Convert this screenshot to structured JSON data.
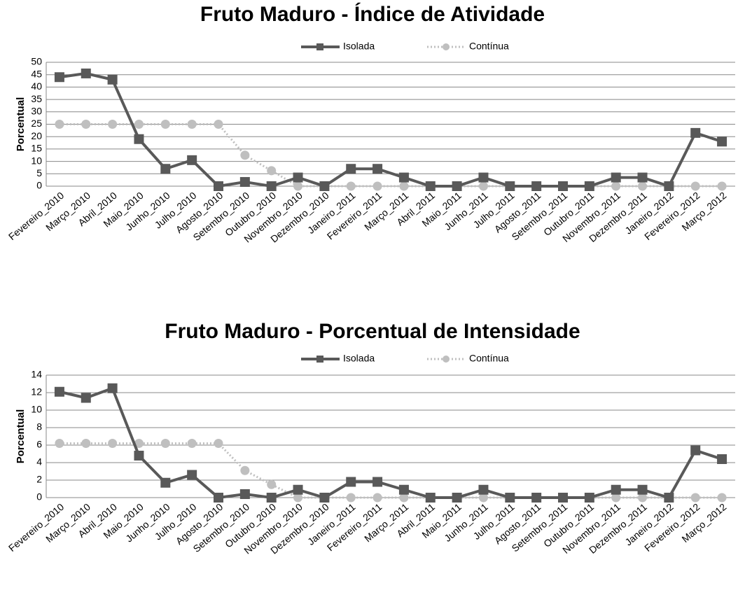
{
  "chart_data": [
    {
      "type": "line",
      "title": "Fruto Maduro - Índice de Atividade",
      "ylabel": "Porcentual",
      "categories": [
        "Fevereiro_2010",
        "Março_2010",
        "Abril_2010",
        "Maio_2010",
        "Junho_2010",
        "Julho_2010",
        "Agosto_2010",
        "Setembro_2010",
        "Outubro_2010",
        "Novembro_2010",
        "Dezembro_2010",
        "Janeiro_2011",
        "Fevereiro_2011",
        "Março_2011",
        "Abril_2011",
        "Maio_2011",
        "Junho_2011",
        "Julho_2011",
        "Agosto_2011",
        "Setembro_2011",
        "Outubro_2011",
        "Novembro_2011",
        "Dezembro_2011",
        "Janeiro_2012",
        "Fevereiro_2012",
        "Março_2012"
      ],
      "series": [
        {
          "name": "Isolada",
          "color": "#595959",
          "marker": "square",
          "style": "solid",
          "values": [
            44,
            45.5,
            43,
            19,
            7,
            10.5,
            0,
            1.7,
            0,
            3.5,
            0,
            7,
            7,
            3.5,
            0,
            0,
            3.5,
            0,
            0,
            0,
            0,
            3.5,
            3.5,
            0,
            21.5,
            18
          ]
        },
        {
          "name": "Contínua",
          "color": "#bfbfbf",
          "marker": "circle",
          "style": "dotted",
          "values": [
            25,
            25,
            25,
            25,
            25,
            25,
            25,
            12.5,
            6.25,
            0,
            0,
            0,
            0,
            0,
            0,
            0,
            0,
            0,
            0,
            0,
            0,
            0,
            0,
            0,
            0,
            0
          ]
        }
      ],
      "ylim": [
        0,
        50
      ],
      "yticks": [
        0,
        5,
        10,
        15,
        20,
        25,
        30,
        35,
        40,
        45,
        50
      ],
      "grid": true,
      "legend": "top"
    },
    {
      "type": "line",
      "title": "Fruto Maduro - Porcentual de Intensidade",
      "ylabel": "Porcentual",
      "categories": [
        "Fevereiro_2010",
        "Março_2010",
        "Abril_2010",
        "Maio_2010",
        "Junho_2010",
        "Julho_2010",
        "Agosto_2010",
        "Setembro_2010",
        "Outubro_2010",
        "Novembro_2010",
        "Dezembro_2010",
        "Janeiro_2011",
        "Fevereiro_2011",
        "Março_2011",
        "Abril_2011",
        "Maio_2011",
        "Junho_2011",
        "Julho_2011",
        "Agosto_2011",
        "Setembro_2011",
        "Outubro_2011",
        "Novembro_2011",
        "Dezembro_2011",
        "Janeiro_2012",
        "Fevereiro_2012",
        "Março_2012"
      ],
      "series": [
        {
          "name": "Isolada",
          "color": "#595959",
          "marker": "square",
          "style": "solid",
          "values": [
            12.1,
            11.4,
            12.5,
            4.8,
            1.7,
            2.6,
            0,
            0.4,
            0,
            0.9,
            0,
            1.8,
            1.8,
            0.9,
            0,
            0,
            0.9,
            0,
            0,
            0,
            0,
            0.9,
            0.9,
            0,
            5.4,
            4.4
          ]
        },
        {
          "name": "Contínua",
          "color": "#bfbfbf",
          "marker": "circle",
          "style": "dotted",
          "values": [
            6.2,
            6.2,
            6.2,
            6.2,
            6.2,
            6.2,
            6.2,
            3.1,
            1.5,
            0,
            0,
            0,
            0,
            0,
            0,
            0,
            0,
            0,
            0,
            0,
            0,
            0,
            0,
            0,
            0,
            0
          ]
        }
      ],
      "ylim": [
        0,
        14
      ],
      "yticks": [
        0,
        2,
        4,
        6,
        8,
        10,
        12,
        14
      ],
      "grid": true,
      "legend": "top"
    }
  ]
}
